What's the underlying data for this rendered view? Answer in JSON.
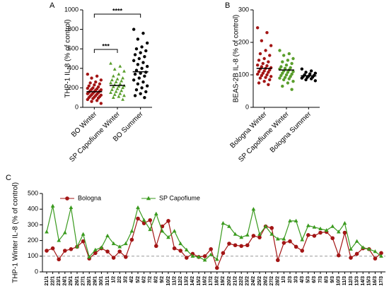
{
  "chart_data": [
    {
      "type": "dot_plot",
      "panel": "A",
      "ylabel": "THP-1 IL-8 (% of control)",
      "ylim": [
        0,
        1000
      ],
      "yticks": [
        0,
        200,
        400,
        600,
        800,
        1000
      ],
      "categories": [
        "BO Winter",
        "SP Capofiume Winter",
        "BO Summer"
      ],
      "groups": [
        {
          "color": "#a31515",
          "marker": "circle",
          "mean": 160,
          "values": [
            340,
            320,
            300,
            280,
            260,
            250,
            240,
            230,
            220,
            210,
            200,
            195,
            190,
            185,
            180,
            175,
            170,
            165,
            160,
            155,
            150,
            145,
            140,
            135,
            130,
            125,
            120,
            115,
            110,
            105,
            100,
            95,
            90,
            80,
            70,
            60,
            40
          ]
        },
        {
          "color": "#5a9e2c",
          "marker": "triangle",
          "mean": 225,
          "values": [
            450,
            420,
            390,
            370,
            340,
            320,
            300,
            290,
            280,
            270,
            260,
            250,
            240,
            230,
            220,
            215,
            210,
            200,
            190,
            180,
            170,
            160,
            150,
            140,
            130,
            120,
            110,
            100,
            80
          ]
        },
        {
          "color": "#000000",
          "marker": "circle",
          "mean": 365,
          "values": [
            800,
            760,
            700,
            660,
            620,
            600,
            580,
            560,
            540,
            520,
            500,
            480,
            460,
            440,
            420,
            400,
            380,
            360,
            350,
            340,
            320,
            300,
            280,
            260,
            240,
            220,
            200,
            180,
            160,
            140,
            120,
            100
          ]
        }
      ],
      "brackets": [
        {
          "label": "***",
          "from": "BO Winter",
          "to": "SP Capofiume Winter"
        },
        {
          "label": "****",
          "from": "BO Winter",
          "to": "BO Summer"
        }
      ]
    },
    {
      "type": "dot_plot",
      "panel": "B",
      "ylabel": "BEAS-2B IL-8 (% of control)",
      "ylim": [
        0,
        300
      ],
      "yticks": [
        0,
        100,
        200,
        300
      ],
      "categories": [
        "Bologna Winter",
        "SP Capofiume Winter",
        "Bologna Summer"
      ],
      "groups": [
        {
          "color": "#a31515",
          "marker": "circle",
          "mean": 120,
          "values": [
            245,
            230,
            205,
            190,
            175,
            165,
            160,
            150,
            145,
            140,
            135,
            130,
            128,
            125,
            122,
            120,
            118,
            115,
            112,
            110,
            108,
            105,
            102,
            100,
            98,
            95,
            92,
            90,
            85,
            80,
            75,
            70
          ]
        },
        {
          "color": "#5a9e2c",
          "marker": "circle",
          "mean": 115,
          "values": [
            175,
            165,
            160,
            150,
            145,
            140,
            135,
            130,
            125,
            122,
            120,
            118,
            115,
            112,
            110,
            108,
            105,
            102,
            100,
            98,
            95,
            92,
            90,
            88,
            85,
            80,
            75,
            65,
            55
          ]
        },
        {
          "color": "#000000",
          "marker": "circle",
          "mean": 97,
          "values": [
            118,
            112,
            108,
            105,
            103,
            100,
            98,
            96,
            95,
            93,
            92,
            90,
            88,
            85,
            82
          ]
        }
      ],
      "brackets": []
    },
    {
      "type": "line",
      "panel": "C",
      "ylabel": "THP-1 Winter IL-8 (% of control)",
      "ylim": [
        0,
        500
      ],
      "yticks": [
        0,
        100,
        200,
        300,
        400,
        500
      ],
      "refline": 100,
      "categories": [
        "21/1",
        "22/1",
        "23/1",
        "24/1",
        "25/1",
        "26/1",
        "27/1",
        "28/1",
        "29/1",
        "30/1",
        "31/1",
        "1/2",
        "2/2",
        "3/2",
        "4/2",
        "5/2",
        "6/2",
        "7/2",
        "8/2",
        "9/2",
        "10/2",
        "11/2",
        "12/2",
        "13/2",
        "14/2",
        "15/2",
        "16/2",
        "17/2",
        "18/2",
        "19/2",
        "20/2",
        "21/2",
        "22/2",
        "23/2",
        "24/2",
        "25/2",
        "26/2",
        "27/2",
        "28/2",
        "1/3",
        "2/3",
        "3/3",
        "4/3",
        "5/3",
        "6/3",
        "7/3",
        "8/3",
        "9/3",
        "10/3",
        "11/3",
        "12/3",
        "13/3",
        "14/3",
        "15/3",
        "16/3",
        "17/3"
      ],
      "series": [
        {
          "name": "Bologna",
          "color": "#a31515",
          "marker": "circle",
          "values": [
            135,
            150,
            80,
            135,
            145,
            160,
            195,
            85,
            120,
            150,
            130,
            90,
            130,
            95,
            205,
            340,
            310,
            330,
            165,
            290,
            325,
            150,
            135,
            90,
            115,
            95,
            100,
            145,
            25,
            120,
            180,
            170,
            165,
            170,
            230,
            220,
            290,
            280,
            75,
            185,
            195,
            160,
            135,
            235,
            230,
            250,
            255,
            215,
            105,
            250,
            90,
            115,
            150,
            145,
            85,
            120
          ]
        },
        {
          "name": "SP Capofiume",
          "color": "#3a9a1e",
          "marker": "triangle",
          "values": [
            255,
            420,
            200,
            250,
            410,
            160,
            240,
            95,
            140,
            155,
            230,
            180,
            160,
            180,
            260,
            410,
            330,
            270,
            370,
            260,
            220,
            260,
            180,
            140,
            100,
            95,
            75,
            110,
            80,
            310,
            290,
            240,
            220,
            235,
            400,
            240,
            290,
            240,
            210,
            210,
            325,
            325,
            205,
            295,
            285,
            275,
            265,
            290,
            255,
            310,
            145,
            195,
            155,
            145,
            130,
            100
          ]
        }
      ]
    }
  ]
}
